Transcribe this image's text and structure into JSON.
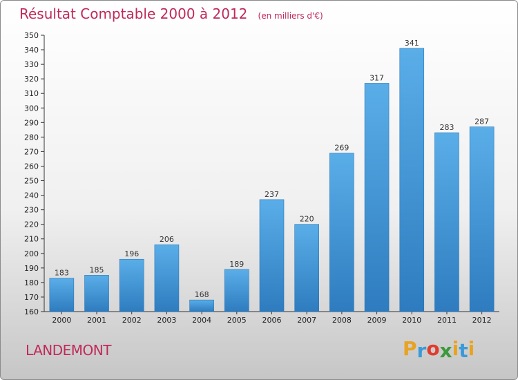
{
  "header": {
    "title": "Résultat Comptable 2000 à 2012",
    "unit": "(en milliers d'€)"
  },
  "footer": {
    "commune": "LANDEMONT",
    "brand_letters": [
      "P",
      "r",
      "o",
      "x",
      "i",
      "t",
      "i"
    ],
    "brand_colors": [
      "#e8a321",
      "#3a9ad9",
      "#e03c2e",
      "#3b9a3b",
      "#e8a321",
      "#3a9ad9",
      "#e8a321"
    ]
  },
  "chart_data": {
    "type": "bar",
    "categories": [
      "2000",
      "2001",
      "2002",
      "2003",
      "2004",
      "2005",
      "2006",
      "2007",
      "2008",
      "2009",
      "2010",
      "2011",
      "2012"
    ],
    "values": [
      183,
      185,
      196,
      206,
      168,
      189,
      237,
      220,
      269,
      317,
      341,
      283,
      287
    ],
    "data_labels": [
      "183",
      "185",
      "196",
      "206",
      "168",
      "189",
      "237",
      "220",
      "269",
      "317",
      "341",
      "283",
      "287"
    ],
    "title": "Résultat Comptable 2000 à 2012",
    "ylim": [
      160,
      350
    ],
    "ytick_step": 10,
    "grid": false,
    "bar_color_top": "#5aaee8",
    "bar_color_bottom": "#2e7cbf"
  }
}
